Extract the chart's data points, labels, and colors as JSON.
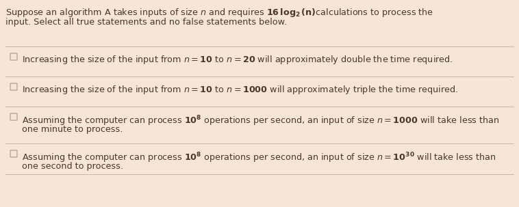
{
  "bg_color": "#f5e6d8",
  "text_color": "#4a3728",
  "line_color": "#c8b8a8",
  "checkbox_color": "#b8a090",
  "font_size": 9.2,
  "items": [
    {
      "line1": "Increasing the size of the input from $n=\\mathbf{10}$ to $n=\\mathbf{20}$ will approximately double the time required.",
      "line2": null
    },
    {
      "line1": "Increasing the size of the input from $n=\\mathbf{10}$ to $n=\\mathbf{1000}$ will approximately triple the time required.",
      "line2": null
    },
    {
      "line1": "Assuming the computer can process $\\mathbf{10^8}$ operations per second, an input of size $n=\\mathbf{1000}$ will take less than",
      "line2": "one minute to process."
    },
    {
      "line1": "Assuming the computer can process $\\mathbf{10^8}$ operations per second, an input of size $n=\\mathbf{10^{30}}$ will take less than",
      "line2": "one second to process."
    }
  ]
}
